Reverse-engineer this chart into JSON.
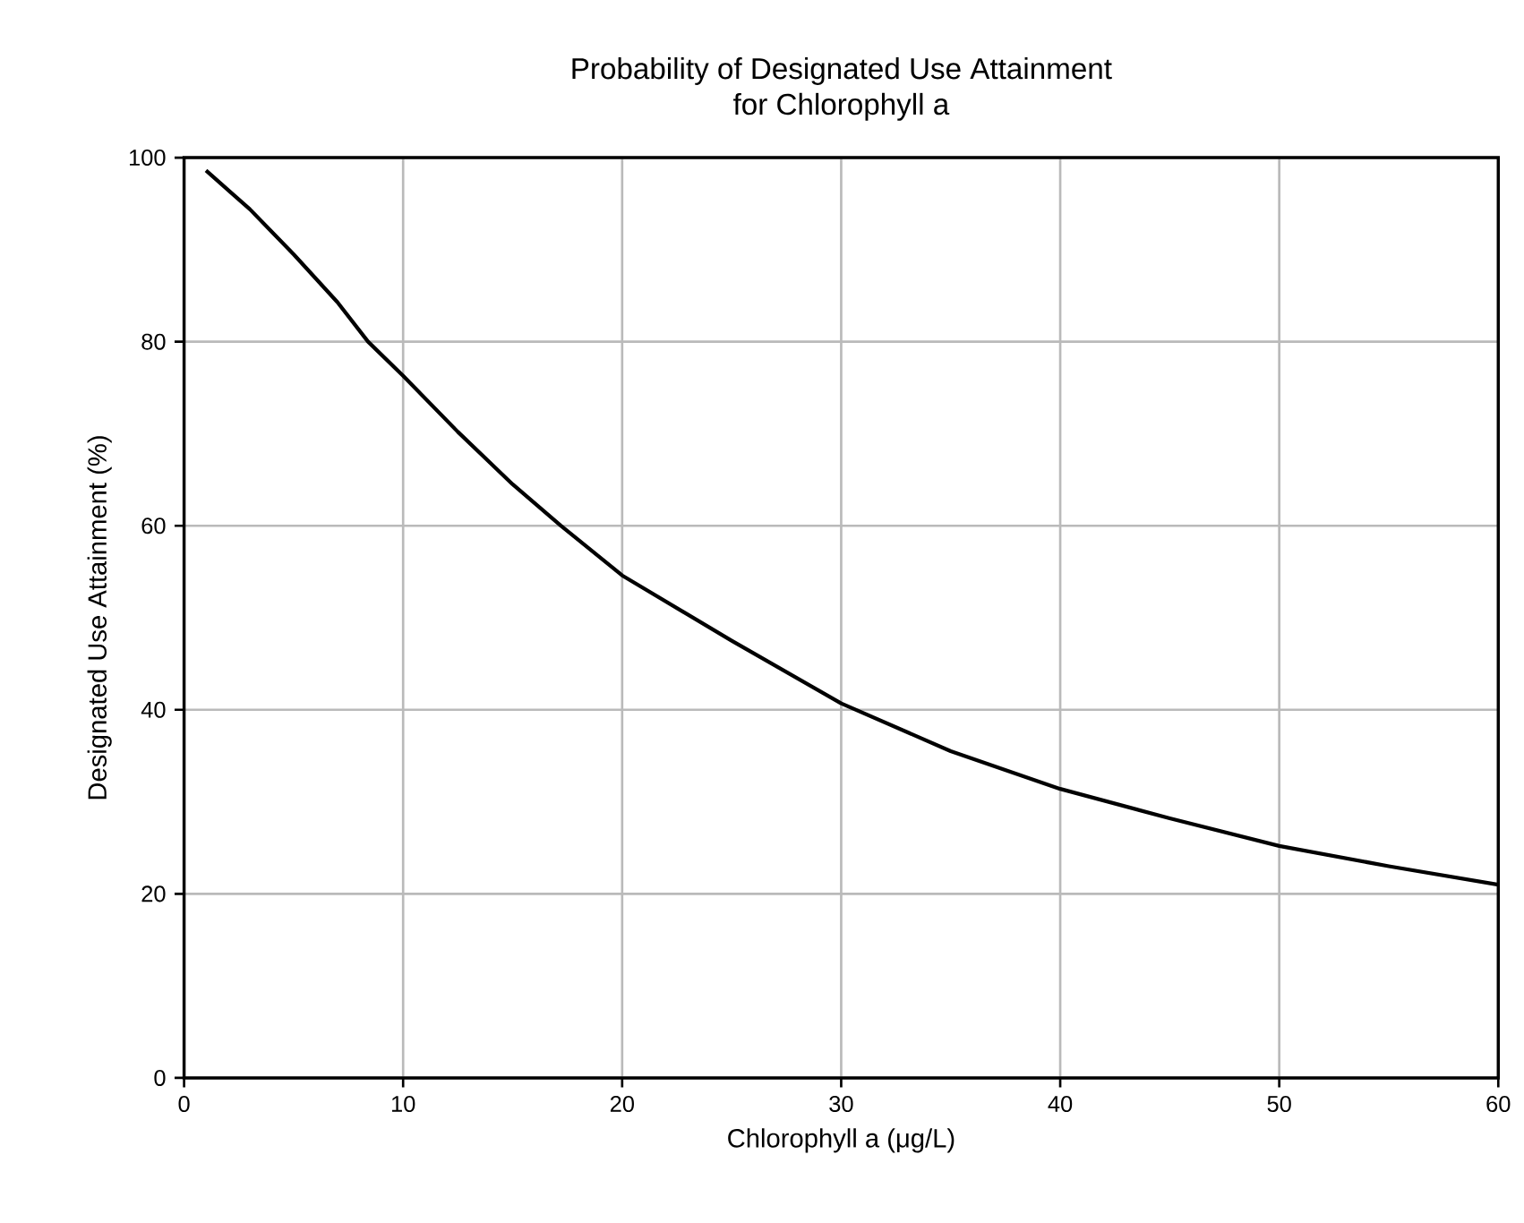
{
  "chart_data": {
    "type": "line",
    "title": "Probability of Designated Use Attainment\nfor Chlorophyll a",
    "xlabel": "Chlorophyll a (μg/L)",
    "ylabel": "Designated Use Attainment (%)",
    "x": [
      1,
      3,
      5,
      7,
      8.4,
      10,
      12.5,
      15,
      17.2,
      20,
      25,
      30,
      35,
      40,
      45,
      50,
      55,
      60
    ],
    "values": [
      98.6,
      94.4,
      89.5,
      84.3,
      80,
      76.3,
      70.2,
      64.5,
      60,
      54.6,
      47.5,
      40.7,
      35.5,
      31.4,
      28.2,
      25.2,
      23.0,
      21.0
    ],
    "color": "#000000",
    "xlim": [
      0,
      60
    ],
    "ylim": [
      0,
      100
    ],
    "xticks": [
      0,
      10,
      20,
      30,
      40,
      50,
      60
    ],
    "yticks": [
      0,
      20,
      40,
      60,
      80,
      100
    ],
    "grid": true,
    "marker": "none",
    "line_style": "solid"
  }
}
